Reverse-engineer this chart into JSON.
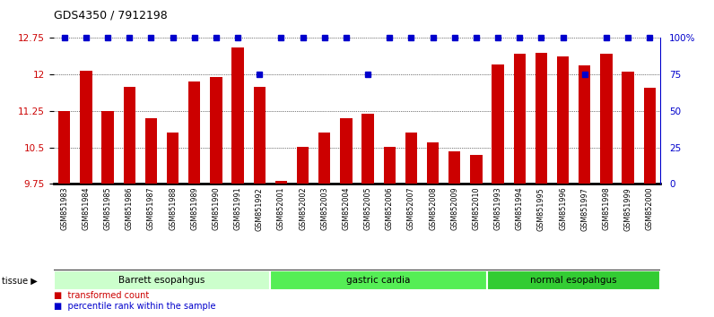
{
  "title": "GDS4350 / 7912198",
  "samples": [
    "GSM851983",
    "GSM851984",
    "GSM851985",
    "GSM851986",
    "GSM851987",
    "GSM851988",
    "GSM851989",
    "GSM851990",
    "GSM851991",
    "GSM851992",
    "GSM852001",
    "GSM852002",
    "GSM852003",
    "GSM852004",
    "GSM852005",
    "GSM852006",
    "GSM852007",
    "GSM852008",
    "GSM852009",
    "GSM852010",
    "GSM851993",
    "GSM851994",
    "GSM851995",
    "GSM851996",
    "GSM851997",
    "GSM851998",
    "GSM851999",
    "GSM852000"
  ],
  "bar_values": [
    11.25,
    12.07,
    11.25,
    11.75,
    11.1,
    10.8,
    11.85,
    11.95,
    12.55,
    11.75,
    9.82,
    10.52,
    10.8,
    11.1,
    11.2,
    10.52,
    10.8,
    10.6,
    10.42,
    10.35,
    12.2,
    12.42,
    12.45,
    12.38,
    12.18,
    12.42,
    12.05,
    11.72
  ],
  "percentile_values": [
    100,
    100,
    100,
    100,
    100,
    100,
    100,
    100,
    100,
    75,
    100,
    100,
    100,
    100,
    75,
    100,
    100,
    100,
    100,
    100,
    100,
    100,
    100,
    100,
    75,
    100,
    100,
    100
  ],
  "groups": [
    {
      "label": "Barrett esopahgus",
      "start": 0,
      "end": 10,
      "color": "#ccffcc"
    },
    {
      "label": "gastric cardia",
      "start": 10,
      "end": 20,
      "color": "#55ee55"
    },
    {
      "label": "normal esopahgus",
      "start": 20,
      "end": 28,
      "color": "#33cc33"
    }
  ],
  "bar_color": "#cc0000",
  "dot_color": "#0000cc",
  "ymin": 9.75,
  "ymax": 12.75,
  "yticks": [
    9.75,
    10.5,
    11.25,
    12.0,
    12.75
  ],
  "ytick_labels": [
    "9.75",
    "10.5",
    "11.25",
    "12",
    "12.75"
  ],
  "y2ticks": [
    0,
    25,
    50,
    75,
    100
  ],
  "y2tick_labels": [
    "0",
    "25",
    "50",
    "75",
    "100%"
  ]
}
